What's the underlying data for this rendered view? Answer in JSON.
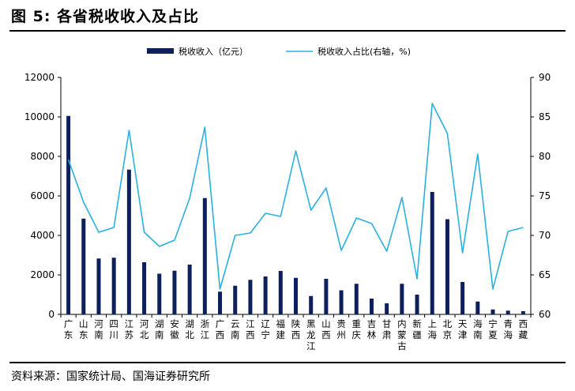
{
  "header": {
    "title": "图 5:  各省税收收入及占比"
  },
  "footer": {
    "source": "资料来源：国家统计局、国海证券研究所"
  },
  "chart_data": {
    "type": "bar",
    "categories": [
      "广东",
      "山东",
      "河南",
      "四川",
      "江苏",
      "河北",
      "湖南",
      "安徽",
      "湖北",
      "浙江",
      "广西",
      "云南",
      "江西",
      "辽宁",
      "福建",
      "陕西",
      "黑龙江",
      "山西",
      "贵州",
      "重庆",
      "吉林",
      "甘肃",
      "内蒙古",
      "新疆",
      "上海",
      "北京",
      "天津",
      "海南",
      "宁夏",
      "青海",
      "西藏"
    ],
    "category_labels": [
      [
        "广",
        "东"
      ],
      [
        "山",
        "东"
      ],
      [
        "河",
        "南"
      ],
      [
        "四",
        "川"
      ],
      [
        "江",
        "苏"
      ],
      [
        "河",
        "北"
      ],
      [
        "湖",
        "南"
      ],
      [
        "安",
        "徽"
      ],
      [
        "湖",
        "北"
      ],
      [
        "浙",
        "江"
      ],
      [
        "广",
        "西"
      ],
      [
        "云",
        "南"
      ],
      [
        "江",
        "西"
      ],
      [
        "辽",
        "宁"
      ],
      [
        "福",
        "建"
      ],
      [
        "陕",
        "西"
      ],
      [
        "黑",
        "龙",
        "江"
      ],
      [
        "山",
        "西"
      ],
      [
        "贵",
        "州"
      ],
      [
        "重",
        "庆"
      ],
      [
        "吉",
        "林"
      ],
      [
        "甘",
        "肃"
      ],
      [
        "内",
        "蒙",
        "古"
      ],
      [
        "新",
        "疆"
      ],
      [
        "上",
        "海"
      ],
      [
        "北",
        "京"
      ],
      [
        "天",
        "津"
      ],
      [
        "海",
        "南"
      ],
      [
        "宁",
        "夏"
      ],
      [
        "青",
        "海"
      ],
      [
        "西",
        "藏"
      ]
    ],
    "series": [
      {
        "name": "税收收入（亿元）",
        "type": "bar",
        "axis": "left",
        "color": "#0d1f5c",
        "values": [
          10050,
          4850,
          2830,
          2870,
          7330,
          2640,
          2060,
          2210,
          2520,
          5890,
          1150,
          1450,
          1750,
          1920,
          2200,
          1850,
          930,
          1800,
          1220,
          1550,
          800,
          560,
          1550,
          1000,
          6200,
          4820,
          1640,
          650,
          250,
          190,
          160
        ]
      },
      {
        "name": "税收收入占比(右轴，%)",
        "type": "line",
        "axis": "right",
        "color": "#2bb0e0",
        "values": [
          79.6,
          74.2,
          70.4,
          71.0,
          83.3,
          70.4,
          68.6,
          69.4,
          74.7,
          83.7,
          63.2,
          70.0,
          70.3,
          72.8,
          72.4,
          80.7,
          73.2,
          76.0,
          68.1,
          72.2,
          71.5,
          68.0,
          74.8,
          64.5,
          86.7,
          82.9,
          67.8,
          80.3,
          63.2,
          70.5,
          71.0
        ]
      }
    ],
    "y_left": {
      "min": 0,
      "max": 12000,
      "ticks": [
        "0",
        "2000",
        "4000",
        "6000",
        "8000",
        "10000",
        "12000"
      ]
    },
    "y_right": {
      "min": 60,
      "max": 90,
      "ticks": [
        "60",
        "65",
        "70",
        "75",
        "80",
        "85",
        "90"
      ]
    },
    "legend": {
      "placement": "top-center"
    },
    "grid": false
  }
}
